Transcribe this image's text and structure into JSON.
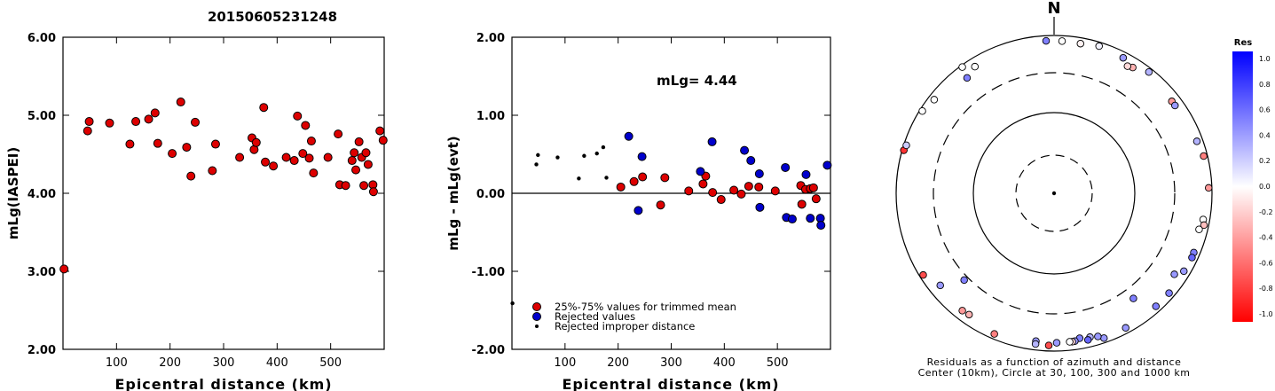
{
  "figure_title": "20150605231248",
  "chart_data": [
    {
      "type": "scatter",
      "xlabel": "Epicentral distance (km)",
      "ylabel": "mLg(IASPEI)",
      "xlim": [
        0,
        600
      ],
      "ylim": [
        2.0,
        6.0
      ],
      "xticks": [
        100,
        200,
        300,
        400,
        500
      ],
      "yticks": [
        2.0,
        3.0,
        4.0,
        5.0,
        6.0
      ],
      "ytick_labels": [
        "2.00",
        "3.00",
        "4.00",
        "5.00",
        "6.00"
      ],
      "series": [
        {
          "color": "#dd0000",
          "points": [
            [
              2,
              3.03
            ],
            [
              46,
              4.8
            ],
            [
              49,
              4.92
            ],
            [
              87,
              4.9
            ],
            [
              125,
              4.63
            ],
            [
              136,
              4.92
            ],
            [
              160,
              4.95
            ],
            [
              172,
              5.03
            ],
            [
              177,
              4.64
            ],
            [
              204,
              4.51
            ],
            [
              220,
              5.17
            ],
            [
              231,
              4.59
            ],
            [
              239,
              4.22
            ],
            [
              247,
              4.91
            ],
            [
              279,
              4.29
            ],
            [
              285,
              4.63
            ],
            [
              330,
              4.46
            ],
            [
              353,
              4.71
            ],
            [
              357,
              4.56
            ],
            [
              361,
              4.65
            ],
            [
              375,
              5.1
            ],
            [
              378,
              4.4
            ],
            [
              393,
              4.35
            ],
            [
              417,
              4.46
            ],
            [
              432,
              4.42
            ],
            [
              438,
              4.99
            ],
            [
              448,
              4.51
            ],
            [
              453,
              4.87
            ],
            [
              460,
              4.45
            ],
            [
              464,
              4.67
            ],
            [
              468,
              4.26
            ],
            [
              495,
              4.46
            ],
            [
              514,
              4.76
            ],
            [
              517,
              4.11
            ],
            [
              528,
              4.1
            ],
            [
              540,
              4.42
            ],
            [
              544,
              4.52
            ],
            [
              547,
              4.3
            ],
            [
              553,
              4.66
            ],
            [
              558,
              4.46
            ],
            [
              562,
              4.1
            ],
            [
              566,
              4.52
            ],
            [
              570,
              4.37
            ],
            [
              579,
              4.11
            ],
            [
              580,
              4.02
            ],
            [
              592,
              4.8
            ],
            [
              598,
              4.68
            ]
          ]
        }
      ]
    },
    {
      "type": "scatter",
      "xlabel": "Epicentral distance (km)",
      "ylabel": "mLg - mLg(evt)",
      "xlim": [
        0,
        600
      ],
      "ylim": [
        -2.0,
        2.0
      ],
      "xticks": [
        100,
        200,
        300,
        400,
        500
      ],
      "yticks": [
        -2.0,
        -1.0,
        0.0,
        1.0,
        2.0
      ],
      "ytick_labels": [
        "-2.00",
        "-1.00",
        "0.00",
        "1.00",
        "2.00"
      ],
      "reference_line_y": 0.0,
      "annotation": "mLg= 4.44",
      "legend": [
        {
          "label": "25%-75% values for trimmed mean",
          "color": "#dd0000",
          "marker": "circle"
        },
        {
          "label": "Rejected values",
          "color": "#0000cc",
          "marker": "circle"
        },
        {
          "label": "Rejected improper distance",
          "color": "#000000",
          "marker": "dot"
        }
      ],
      "series": [
        {
          "name": "25%-75% values for trimmed mean",
          "color": "#dd0000",
          "points": [
            [
              205,
              0.08
            ],
            [
              230,
              0.15
            ],
            [
              246,
              0.21
            ],
            [
              280,
              -0.15
            ],
            [
              288,
              0.2
            ],
            [
              333,
              0.03
            ],
            [
              360,
              0.12
            ],
            [
              365,
              0.22
            ],
            [
              378,
              0.01
            ],
            [
              394,
              -0.08
            ],
            [
              418,
              0.04
            ],
            [
              432,
              -0.01
            ],
            [
              446,
              0.09
            ],
            [
              465,
              0.08
            ],
            [
              496,
              0.03
            ],
            [
              544,
              0.1
            ],
            [
              546,
              -0.14
            ],
            [
              553,
              0.05
            ],
            [
              562,
              0.06
            ],
            [
              568,
              0.07
            ],
            [
              573,
              -0.07
            ]
          ]
        },
        {
          "name": "Rejected values",
          "color": "#0000cc",
          "points": [
            [
              220,
              0.73
            ],
            [
              238,
              -0.22
            ],
            [
              245,
              0.47
            ],
            [
              355,
              0.28
            ],
            [
              377,
              0.66
            ],
            [
              438,
              0.55
            ],
            [
              450,
              0.42
            ],
            [
              466,
              0.25
            ],
            [
              467,
              -0.18
            ],
            [
              515,
              0.33
            ],
            [
              517,
              -0.31
            ],
            [
              528,
              -0.33
            ],
            [
              554,
              0.24
            ],
            [
              562,
              -0.32
            ],
            [
              581,
              -0.32
            ],
            [
              582,
              -0.41
            ],
            [
              594,
              0.36
            ]
          ]
        },
        {
          "name": "Rejected improper distance",
          "color": "#000000",
          "points": [
            [
              1,
              -1.41
            ],
            [
              46,
              0.37
            ],
            [
              49,
              0.49
            ],
            [
              86,
              0.46
            ],
            [
              126,
              0.19
            ],
            [
              136,
              0.48
            ],
            [
              160,
              0.51
            ],
            [
              172,
              0.59
            ],
            [
              178,
              0.2
            ]
          ]
        }
      ]
    },
    {
      "type": "scatter",
      "subtype": "polar",
      "north_label": "N",
      "caption_line1": "Residuals as a function of azimuth and distance",
      "caption_line2": "Center (10km), Circle at 30, 100, 300 and 1000 km",
      "rings_km": [
        30,
        100,
        300,
        1000
      ],
      "colorbar": {
        "title": "Res",
        "ticks": [
          "1.0",
          "0.8",
          "0.6",
          "0.4",
          "0.2",
          "0.0",
          "-0.2",
          "-0.4",
          "-0.6",
          "-0.8",
          "-1.0"
        ],
        "max_color": "#0000ff",
        "mid_color": "#ffffff",
        "min_color": "#ff0000"
      },
      "points": [
        {
          "az": 357,
          "dist_km": 845,
          "res": 0.5
        },
        {
          "az": 3,
          "dist_km": 838,
          "res": 0.0
        },
        {
          "az": 10,
          "dist_km": 828,
          "res": -0.05
        },
        {
          "az": 17,
          "dist_km": 880,
          "res": 0.05
        },
        {
          "az": 27,
          "dist_km": 830,
          "res": 0.4
        },
        {
          "az": 38,
          "dist_km": 880,
          "res": 0.3
        },
        {
          "az": 32,
          "dist_km": 735,
          "res": -0.3
        },
        {
          "az": 30,
          "dist_km": 700,
          "res": -0.15
        },
        {
          "az": -32,
          "dist_km": 760,
          "res": 0.0
        },
        {
          "az": -37,
          "dist_km": 650,
          "res": 0.5
        },
        {
          "az": -52,
          "dist_km": 830,
          "res": 0.0
        },
        {
          "az": 52,
          "dist_km": 760,
          "res": -0.4
        },
        {
          "az": 54,
          "dist_km": 760,
          "res": 0.4
        },
        {
          "az": 70,
          "dist_km": 825,
          "res": 0.3
        },
        {
          "az": 76,
          "dist_km": 885,
          "res": -0.5
        },
        {
          "az": 88,
          "dist_km": 900,
          "res": -0.4
        },
        {
          "az": 100,
          "dist_km": 810,
          "res": 0.0
        },
        {
          "az": 102,
          "dist_km": 860,
          "res": -0.25
        },
        {
          "az": 104,
          "dist_km": 760,
          "res": 0.0
        },
        {
          "az": 113,
          "dist_km": 820,
          "res": 0.5
        },
        {
          "az": 115,
          "dist_km": 830,
          "res": 0.6
        },
        {
          "az": 121,
          "dist_km": 810,
          "res": 0.4
        },
        {
          "az": 131,
          "dist_km": 835,
          "res": 0.5
        },
        {
          "az": 124,
          "dist_km": 660,
          "res": 0.4
        },
        {
          "az": 138,
          "dist_km": 830,
          "res": 0.5
        },
        {
          "az": 152,
          "dist_km": 840,
          "res": 0.4
        },
        {
          "az": 161,
          "dist_km": 860,
          "res": 0.4
        },
        {
          "az": 163,
          "dist_km": 770,
          "res": 0.4
        },
        {
          "az": 166,
          "dist_km": 735,
          "res": 0.3
        },
        {
          "az": 167,
          "dist_km": 790,
          "res": 0.6
        },
        {
          "az": 170,
          "dist_km": 710,
          "res": 0.5
        },
        {
          "az": 172,
          "dist_km": 760,
          "res": 0.4
        },
        {
          "az": 173,
          "dist_km": 765,
          "res": -0.15
        },
        {
          "az": 174,
          "dist_km": 760,
          "res": 0.0
        },
        {
          "az": 179,
          "dist_km": 765,
          "res": 0.4
        },
        {
          "az": 182,
          "dist_km": 835,
          "res": -0.7
        },
        {
          "az": 187,
          "dist_km": 750,
          "res": 0.4
        },
        {
          "az": 187,
          "dist_km": 825,
          "res": 0.3
        },
        {
          "az": 203,
          "dist_km": 850,
          "res": -0.5
        },
        {
          "az": 215,
          "dist_km": 730,
          "res": -0.3
        },
        {
          "az": 218,
          "dist_km": 750,
          "res": -0.4
        },
        {
          "az": 238,
          "dist_km": 890,
          "res": -0.7
        },
        {
          "az": 231,
          "dist_km": 690,
          "res": 0.4
        },
        {
          "az": 143,
          "dist_km": 430,
          "res": 0.5
        },
        {
          "az": 226,
          "dist_km": 345,
          "res": 0.5
        },
        {
          "az": 286,
          "dist_km": 948,
          "res": -0.8
        },
        {
          "az": 288,
          "dist_km": 920,
          "res": 0.2
        },
        {
          "az": 302,
          "dist_km": 920,
          "res": 0.0
        },
        {
          "az": 324,
          "dist_km": 945,
          "res": 0.0
        }
      ]
    }
  ]
}
